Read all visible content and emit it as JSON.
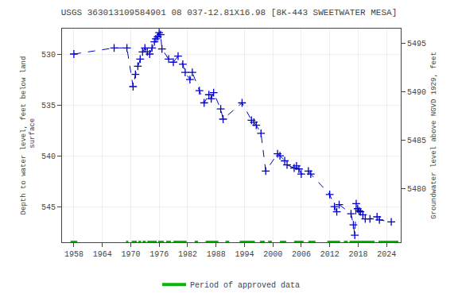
{
  "chart_data": {
    "type": "line",
    "title": "USGS 363013109584901 08 037-12.81X16.98 [8K-443 SWEETWATER MESA]",
    "ylabel": "Depth to water level, feet below land\n surface",
    "y2label": "Groundwater level above NGVD 1929, feet",
    "x": [
      1958.0,
      1966.5,
      1969.2,
      1970.5,
      1971.0,
      1971.5,
      1972.0,
      1972.5,
      1973.0,
      1973.5,
      1974.0,
      1974.5,
      1975.0,
      1975.3,
      1975.7,
      1976.0,
      1976.3,
      1976.6,
      1978.0,
      1979.0,
      1980.0,
      1981.0,
      1981.5,
      1982.5,
      1983.0,
      1984.5,
      1985.5,
      1986.5,
      1987.0,
      1987.5,
      1989.0,
      1989.5,
      1993.5,
      1995.5,
      1996.0,
      1996.5,
      1997.5,
      1998.5,
      2001.0,
      2001.5,
      2002.5,
      2003.0,
      2004.5,
      2005.0,
      2005.5,
      2006.0,
      2007.5,
      2008.0,
      2012.0,
      2013.0,
      2013.5,
      2014.0,
      2016.5,
      2017.0,
      2017.3,
      2017.6,
      2017.9,
      2018.2,
      2018.5,
      2019.0,
      2019.5,
      2020.5,
      2022.0,
      2022.5,
      2025.0
    ],
    "series": [
      {
        "color": "#0000cc",
        "marker": "plus",
        "line_style": "dashed",
        "values": [
          530.0,
          529.4,
          529.4,
          533.2,
          532.0,
          531.2,
          530.5,
          529.8,
          529.4,
          529.8,
          530.0,
          529.4,
          528.8,
          528.5,
          528.3,
          527.9,
          528.1,
          529.5,
          530.5,
          530.8,
          530.2,
          531.0,
          531.8,
          532.5,
          531.8,
          533.6,
          534.8,
          534.0,
          534.4,
          533.8,
          535.4,
          536.4,
          534.8,
          536.5,
          536.7,
          537.0,
          537.8,
          541.5,
          539.8,
          540.0,
          540.5,
          540.9,
          541.2,
          541.0,
          541.3,
          541.8,
          541.5,
          541.8,
          543.8,
          545.0,
          545.5,
          544.8,
          545.7,
          546.8,
          547.8,
          544.7,
          545.2,
          545.4,
          545.5,
          545.8,
          546.2,
          546.2,
          546.0,
          546.3,
          546.5
        ]
      }
    ],
    "approved_periods": {
      "name": "Period of approved data",
      "color": "#00bb00",
      "ranges": [
        [
          1957.3,
          1958.7
        ],
        [
          1969.0,
          1969.5
        ],
        [
          1970.2,
          1971.3
        ],
        [
          1971.6,
          1972.2
        ],
        [
          1972.5,
          1973.2
        ],
        [
          1973.5,
          1975.5
        ],
        [
          1975.8,
          1977.0
        ],
        [
          1977.5,
          1978.5
        ],
        [
          1979.0,
          1981.8
        ],
        [
          1983.5,
          1984.2
        ],
        [
          1985.8,
          1988.5
        ],
        [
          1990.0,
          1990.8
        ],
        [
          1993.0,
          1996.2
        ],
        [
          1997.3,
          1998.3
        ],
        [
          1999.0,
          1999.8
        ],
        [
          2001.5,
          2002.8
        ],
        [
          2004.5,
          2006.5
        ],
        [
          2007.5,
          2009.0
        ],
        [
          2011.5,
          2014.2
        ],
        [
          2015.0,
          2015.8
        ],
        [
          2016.2,
          2021.5
        ],
        [
          2022.3,
          2026.5
        ]
      ]
    },
    "xlim": [
      1955.5,
      2027
    ],
    "xticks": [
      1958,
      1964,
      1970,
      1976,
      1982,
      1988,
      1994,
      2000,
      2006,
      2012,
      2018,
      2024
    ],
    "ylim": [
      548.5,
      527.5
    ],
    "yticks": [
      530,
      535,
      540,
      545
    ],
    "y2lim": [
      5474.5,
      5496.5
    ],
    "y2ticks": [
      5480,
      5485,
      5490,
      5495
    ],
    "grid": true,
    "legend": "bottom"
  }
}
